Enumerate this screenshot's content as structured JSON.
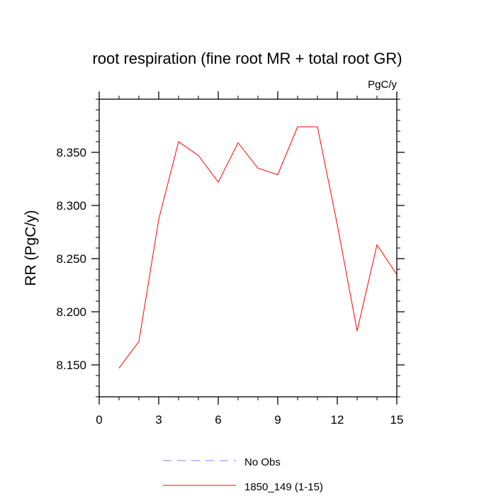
{
  "chart_data": {
    "type": "line",
    "title": "root respiration (fine root MR + total root GR)",
    "units_label": "PgC/y",
    "ylabel": "RR  (PgC/y)",
    "xlabel": "",
    "xlim": [
      0,
      15
    ],
    "ylim": [
      8.12,
      8.4
    ],
    "x_ticks": [
      0,
      3,
      6,
      9,
      12,
      15
    ],
    "x_tick_labels": [
      "0",
      "3",
      "6",
      "9",
      "12",
      "15"
    ],
    "y_ticks": [
      8.15,
      8.2,
      8.25,
      8.3,
      8.35
    ],
    "y_tick_labels": [
      "8.150",
      "8.200",
      "8.250",
      "8.300",
      "8.350"
    ],
    "grid": false,
    "legend_position": "bottom",
    "series": [
      {
        "name": "1850_149 (1-15)",
        "color": "#ff0000",
        "dash": "solid",
        "x": [
          1,
          2,
          3,
          4,
          5,
          6,
          7,
          8,
          9,
          10,
          11,
          12,
          13,
          14,
          15
        ],
        "values": [
          8.147,
          8.172,
          8.287,
          8.36,
          8.347,
          8.322,
          8.359,
          8.335,
          8.329,
          8.374,
          8.374,
          8.282,
          8.182,
          8.263,
          8.235
        ]
      }
    ],
    "legend": [
      {
        "label": "No Obs",
        "color": "#8080ff",
        "dash": "dashed"
      },
      {
        "label": "1850_149 (1-15)",
        "color": "#ff0000",
        "dash": "solid"
      }
    ]
  }
}
